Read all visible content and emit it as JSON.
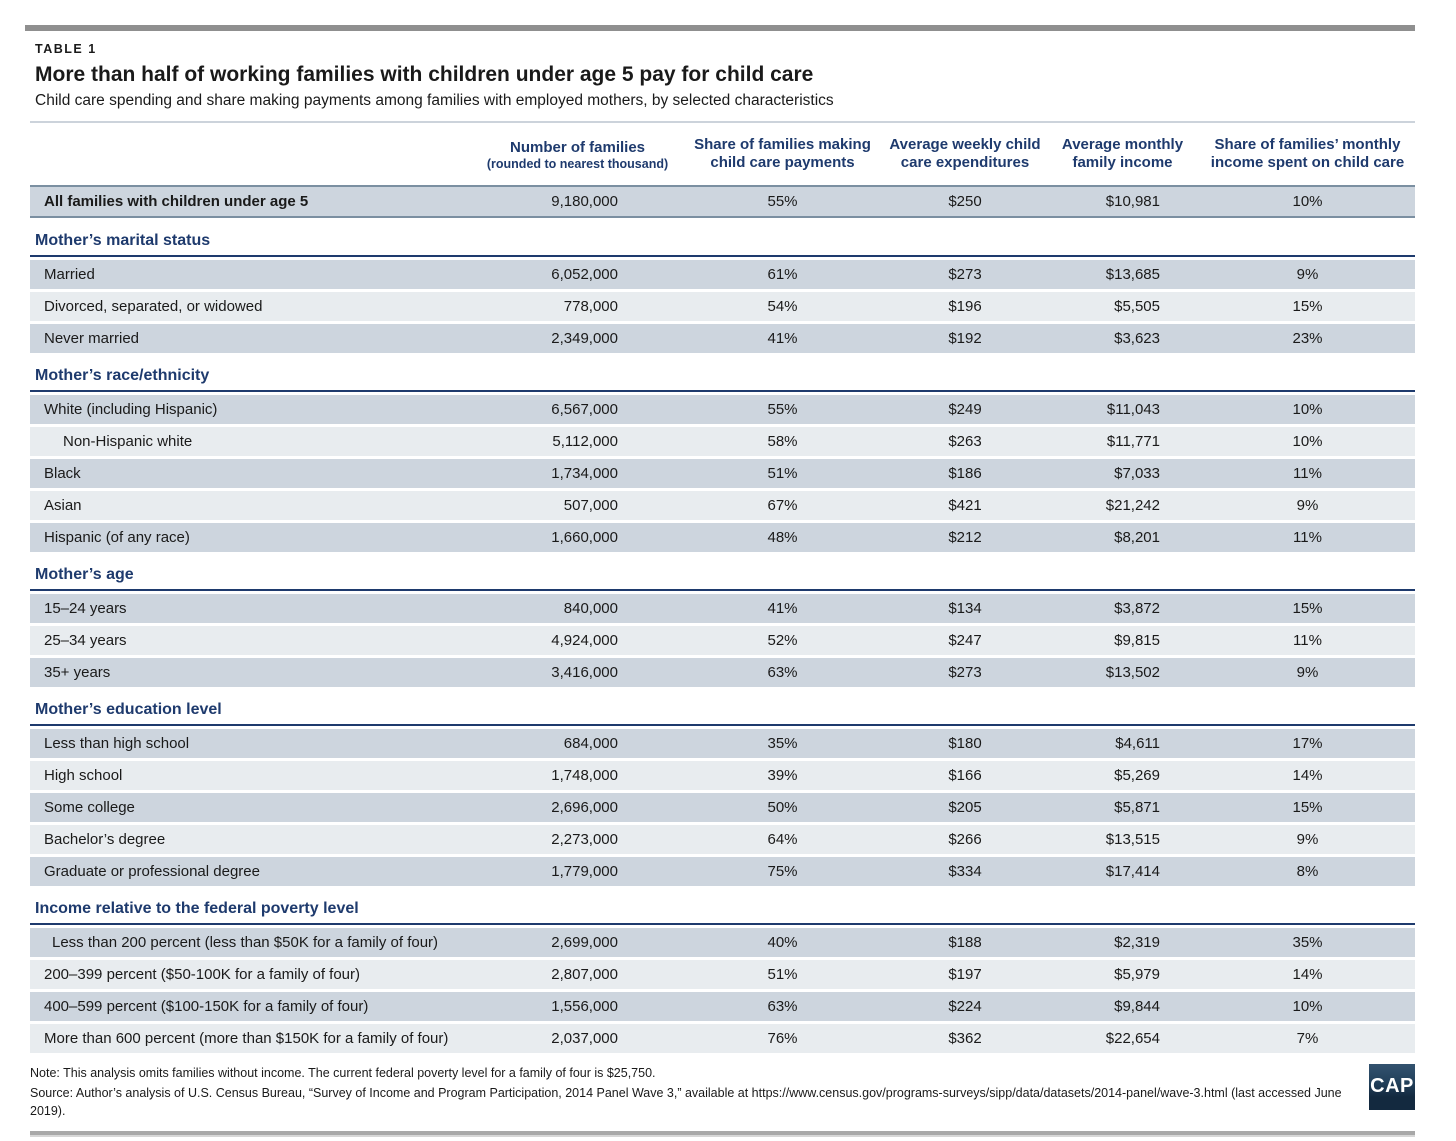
{
  "page": {
    "kicker": "TABLE 1",
    "title": "More than half of working families with children under age 5 pay for child care",
    "subtitle": "Child care spending and share making payments among families with employed mothers, by selected characteristics"
  },
  "table": {
    "columns": [
      {
        "label": "Number of families",
        "sublabel": "(rounded to nearest thousand)"
      },
      {
        "label": "Share of families making child care payments"
      },
      {
        "label": "Average weekly child care expenditures"
      },
      {
        "label": "Average monthly family income"
      },
      {
        "label": "Share of families’ monthly income spent on child care"
      }
    ],
    "summary_row": {
      "label": "All families with children under age 5",
      "indent": 0,
      "values": [
        "9,180,000",
        "55%",
        "$250",
        "$10,981",
        "10%"
      ]
    },
    "sections": [
      {
        "header": "Mother’s marital status",
        "rows": [
          {
            "label": "Married",
            "indent": 0,
            "values": [
              "6,052,000",
              "61%",
              "$273",
              "$13,685",
              "9%"
            ]
          },
          {
            "label": "Divorced, separated, or widowed",
            "indent": 0,
            "values": [
              "778,000",
              "54%",
              "$196",
              "$5,505",
              "15%"
            ]
          },
          {
            "label": "Never married",
            "indent": 0,
            "values": [
              "2,349,000",
              "41%",
              "$192",
              "$3,623",
              "23%"
            ]
          }
        ]
      },
      {
        "header": "Mother’s race/ethnicity",
        "rows": [
          {
            "label": "White (including Hispanic)",
            "indent": 0,
            "values": [
              "6,567,000",
              "55%",
              "$249",
              "$11,043",
              "10%"
            ]
          },
          {
            "label": "Non-Hispanic white",
            "indent": 2,
            "values": [
              "5,112,000",
              "58%",
              "$263",
              "$11,771",
              "10%"
            ]
          },
          {
            "label": "Black",
            "indent": 0,
            "values": [
              "1,734,000",
              "51%",
              "$186",
              "$7,033",
              "11%"
            ]
          },
          {
            "label": "Asian",
            "indent": 0,
            "values": [
              "507,000",
              "67%",
              "$421",
              "$21,242",
              "9%"
            ]
          },
          {
            "label": "Hispanic (of any race)",
            "indent": 0,
            "values": [
              "1,660,000",
              "48%",
              "$212",
              "$8,201",
              "11%"
            ]
          }
        ]
      },
      {
        "header": "Mother’s age",
        "rows": [
          {
            "label": "15–24 years",
            "indent": 0,
            "values": [
              "840,000",
              "41%",
              "$134",
              "$3,872",
              "15%"
            ]
          },
          {
            "label": "25–34 years",
            "indent": 0,
            "values": [
              "4,924,000",
              "52%",
              "$247",
              "$9,815",
              "11%"
            ]
          },
          {
            "label": "35+ years",
            "indent": 0,
            "values": [
              "3,416,000",
              "63%",
              "$273",
              "$13,502",
              "9%"
            ]
          }
        ]
      },
      {
        "header": "Mother’s education level",
        "rows": [
          {
            "label": "Less than high school",
            "indent": 0,
            "values": [
              "684,000",
              "35%",
              "$180",
              "$4,611",
              "17%"
            ]
          },
          {
            "label": "High school",
            "indent": 0,
            "values": [
              "1,748,000",
              "39%",
              "$166",
              "$5,269",
              "14%"
            ]
          },
          {
            "label": "Some college",
            "indent": 0,
            "values": [
              "2,696,000",
              "50%",
              "$205",
              "$5,871",
              "15%"
            ]
          },
          {
            "label": "Bachelor’s degree",
            "indent": 0,
            "values": [
              "2,273,000",
              "64%",
              "$266",
              "$13,515",
              "9%"
            ]
          },
          {
            "label": "Graduate or professional degree",
            "indent": 0,
            "values": [
              "1,779,000",
              "75%",
              "$334",
              "$17,414",
              "8%"
            ]
          }
        ]
      },
      {
        "header": "Income relative to the federal poverty level",
        "rows": [
          {
            "label": "Less than 200 percent (less than $50K for a family of four)",
            "indent": 1,
            "values": [
              "2,699,000",
              "40%",
              "$188",
              "$2,319",
              "35%"
            ]
          },
          {
            "label": "200–399 percent ($50-100K for a family of four)",
            "indent": 0,
            "values": [
              "2,807,000",
              "51%",
              "$197",
              "$5,979",
              "14%"
            ]
          },
          {
            "label": "400–599 percent ($100-150K for a family of four)",
            "indent": 0,
            "values": [
              "1,556,000",
              "63%",
              "$224",
              "$9,844",
              "10%"
            ]
          },
          {
            "label": "More than 600 percent (more than $150K for a family of four)",
            "indent": 0,
            "values": [
              "2,037,000",
              "76%",
              "$362",
              "$22,654",
              "7%"
            ]
          }
        ]
      }
    ]
  },
  "footer": {
    "note": "Note: This analysis omits families without income. The current federal poverty level for a family of four is $25,750.",
    "source": "Source: Author’s analysis of U.S. Census Bureau, “Survey of Income and Program Participation, 2014 Panel Wave 3,” available at https://www.census.gov/programs-surveys/sipp/data/datasets/2014-panel/wave-3.html (last accessed June 2019).",
    "logo_text": "CAP"
  },
  "colors": {
    "navy": "#1e3a6d",
    "row_dark": "#cdd5de",
    "row_light": "#e8ecef",
    "header_rule": "#ccd3db",
    "divider_bar": "#8f8f8f",
    "summary_border": "#7b8fa1",
    "logo_bg": "#13293f"
  }
}
